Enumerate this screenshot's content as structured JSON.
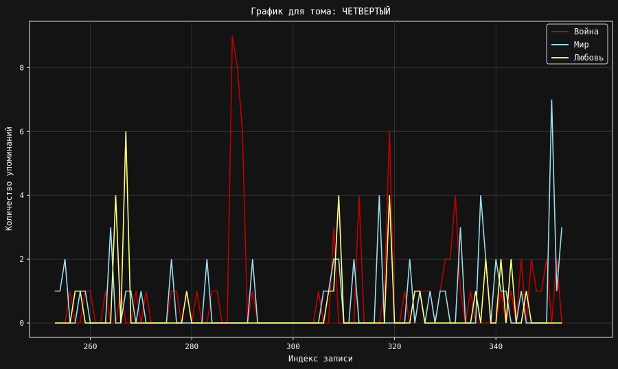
{
  "chart_data": {
    "type": "line",
    "title": "График для тома: ЧЕТВЕРТЫЙ",
    "xlabel": "Индекс записи",
    "ylabel": "Количество упоминаний",
    "xlim": [
      248,
      363
    ],
    "ylim": [
      -0.45,
      9.45
    ],
    "x_ticks": [
      260,
      280,
      300,
      320,
      340
    ],
    "y_ticks": [
      0,
      2,
      4,
      6,
      8
    ],
    "grid": true,
    "legend_position": "top-right",
    "x": [
      253,
      254,
      255,
      256,
      257,
      258,
      259,
      260,
      261,
      262,
      263,
      264,
      265,
      266,
      267,
      268,
      269,
      270,
      271,
      272,
      273,
      274,
      275,
      276,
      277,
      278,
      279,
      280,
      281,
      282,
      283,
      284,
      285,
      286,
      287,
      288,
      289,
      290,
      291,
      292,
      293,
      294,
      295,
      296,
      297,
      298,
      299,
      300,
      301,
      302,
      303,
      304,
      305,
      306,
      307,
      308,
      309,
      310,
      311,
      312,
      313,
      314,
      315,
      316,
      317,
      318,
      319,
      320,
      321,
      322,
      323,
      324,
      325,
      326,
      327,
      328,
      329,
      330,
      331,
      332,
      333,
      334,
      335,
      336,
      337,
      338,
      339,
      340,
      341,
      342,
      343,
      344,
      345,
      346,
      347,
      348,
      349,
      350,
      351,
      352,
      353
    ],
    "series": [
      {
        "name": "Война",
        "color": "#c00000",
        "values": [
          0,
          0,
          0,
          1,
          0,
          0,
          1,
          1,
          0,
          0,
          1,
          0,
          0,
          1,
          0,
          0,
          1,
          0,
          1,
          0,
          0,
          0,
          0,
          1,
          1,
          0,
          1,
          0,
          1,
          0,
          0,
          1,
          1,
          0,
          0,
          9,
          8,
          6,
          0,
          1,
          0,
          0,
          0,
          0,
          0,
          0,
          0,
          0,
          0,
          0,
          0,
          0,
          1,
          0,
          0,
          3,
          0,
          0,
          0,
          0,
          4,
          0,
          0,
          0,
          0,
          1,
          6,
          0,
          0,
          1,
          0,
          0,
          1,
          1,
          1,
          0,
          1,
          2,
          2,
          4,
          1,
          0,
          1,
          0,
          0,
          0,
          0,
          0,
          1,
          0,
          1,
          0,
          2,
          0,
          2,
          1,
          1,
          2,
          0,
          2,
          0
        ]
      },
      {
        "name": "Мир",
        "color": "#9ddcec",
        "values": [
          1,
          1,
          2,
          0,
          0,
          1,
          1,
          0,
          0,
          0,
          0,
          3,
          0,
          0,
          1,
          1,
          0,
          1,
          0,
          0,
          0,
          0,
          0,
          2,
          0,
          0,
          0,
          0,
          0,
          0,
          2,
          0,
          0,
          0,
          0,
          0,
          0,
          0,
          0,
          2,
          0,
          0,
          0,
          0,
          0,
          0,
          0,
          0,
          0,
          0,
          0,
          0,
          0,
          1,
          1,
          2,
          2,
          0,
          0,
          2,
          0,
          0,
          0,
          0,
          4,
          0,
          0,
          0,
          0,
          0,
          2,
          0,
          1,
          0,
          1,
          0,
          1,
          1,
          0,
          0,
          3,
          0,
          0,
          0,
          4,
          2,
          0,
          2,
          1,
          1,
          0,
          0,
          1,
          0,
          0,
          0,
          0,
          0,
          7,
          1,
          3
        ]
      },
      {
        "name": "Любовь",
        "color": "#ffff80",
        "values": [
          0,
          0,
          0,
          0,
          1,
          1,
          0,
          0,
          0,
          0,
          0,
          0,
          4,
          0,
          6,
          0,
          0,
          0,
          0,
          0,
          0,
          0,
          0,
          0,
          0,
          0,
          1,
          0,
          0,
          0,
          0,
          0,
          0,
          0,
          0,
          0,
          0,
          0,
          0,
          0,
          0,
          0,
          0,
          0,
          0,
          0,
          0,
          0,
          0,
          0,
          0,
          0,
          0,
          0,
          1,
          1,
          4,
          0,
          0,
          0,
          0,
          0,
          0,
          0,
          0,
          0,
          4,
          0,
          0,
          0,
          0,
          1,
          1,
          0,
          0,
          0,
          0,
          0,
          0,
          0,
          0,
          0,
          0,
          1,
          0,
          2,
          0,
          0,
          2,
          0,
          2,
          0,
          0,
          1,
          0,
          0,
          0,
          0,
          0,
          0,
          0
        ]
      }
    ]
  }
}
